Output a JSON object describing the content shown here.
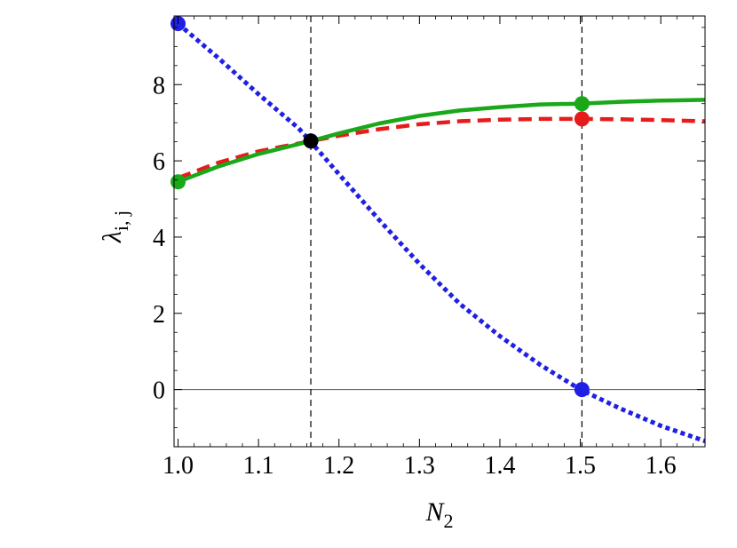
{
  "chart_data": {
    "type": "line",
    "xlabel": "N",
    "xlabel_sub": "2",
    "ylabel": "λ",
    "ylabel_sub": "i, j",
    "xlim": [
      0.995,
      1.655
    ],
    "ylim": [
      -1.5,
      9.8
    ],
    "x_ticks": [
      1.0,
      1.1,
      1.2,
      1.3,
      1.4,
      1.5,
      1.6
    ],
    "x_tick_labels": [
      "1.0",
      "1.1",
      "1.2",
      "1.3",
      "1.4",
      "1.5",
      "1.6"
    ],
    "y_ticks": [
      0,
      2,
      4,
      6,
      8
    ],
    "y_tick_labels": [
      "0",
      "2",
      "4",
      "6",
      "8"
    ],
    "reference_lines": {
      "horizontal_y": 0,
      "vertical_x": [
        1.165,
        1.502
      ]
    },
    "series": [
      {
        "style": "dotted",
        "color": "#1f1fe6",
        "x": [
          1.0,
          1.05,
          1.1,
          1.15,
          1.165,
          1.2,
          1.25,
          1.3,
          1.35,
          1.4,
          1.45,
          1.5,
          1.55,
          1.6,
          1.655
        ],
        "y": [
          9.6,
          8.7,
          7.75,
          6.85,
          6.5,
          5.65,
          4.45,
          3.3,
          2.25,
          1.4,
          0.65,
          0.0,
          -0.5,
          -0.95,
          -1.35
        ]
      },
      {
        "style": "dashed",
        "color": "#e61c1c",
        "x": [
          1.0,
          1.05,
          1.1,
          1.165,
          1.2,
          1.25,
          1.3,
          1.35,
          1.4,
          1.45,
          1.5,
          1.55,
          1.6,
          1.655
        ],
        "y": [
          5.55,
          5.95,
          6.25,
          6.52,
          6.66,
          6.83,
          6.96,
          7.04,
          7.08,
          7.1,
          7.1,
          7.09,
          7.07,
          7.04
        ]
      },
      {
        "style": "solid",
        "color": "#1aa81a",
        "x": [
          1.0,
          1.05,
          1.1,
          1.165,
          1.2,
          1.25,
          1.3,
          1.35,
          1.4,
          1.45,
          1.5,
          1.55,
          1.6,
          1.655
        ],
        "y": [
          5.45,
          5.85,
          6.18,
          6.52,
          6.72,
          6.98,
          7.18,
          7.32,
          7.41,
          7.48,
          7.5,
          7.55,
          7.58,
          7.6
        ]
      }
    ],
    "markers": [
      {
        "x": 1.0,
        "y": 9.6,
        "color": "#1f1fe6"
      },
      {
        "x": 1.0,
        "y": 5.45,
        "color": "#1aa81a"
      },
      {
        "x": 1.165,
        "y": 6.52,
        "color": "#000000"
      },
      {
        "x": 1.502,
        "y": 7.5,
        "color": "#1aa81a"
      },
      {
        "x": 1.502,
        "y": 7.1,
        "color": "#e61c1c"
      },
      {
        "x": 1.502,
        "y": 0.0,
        "color": "#1f1fe6"
      }
    ]
  }
}
